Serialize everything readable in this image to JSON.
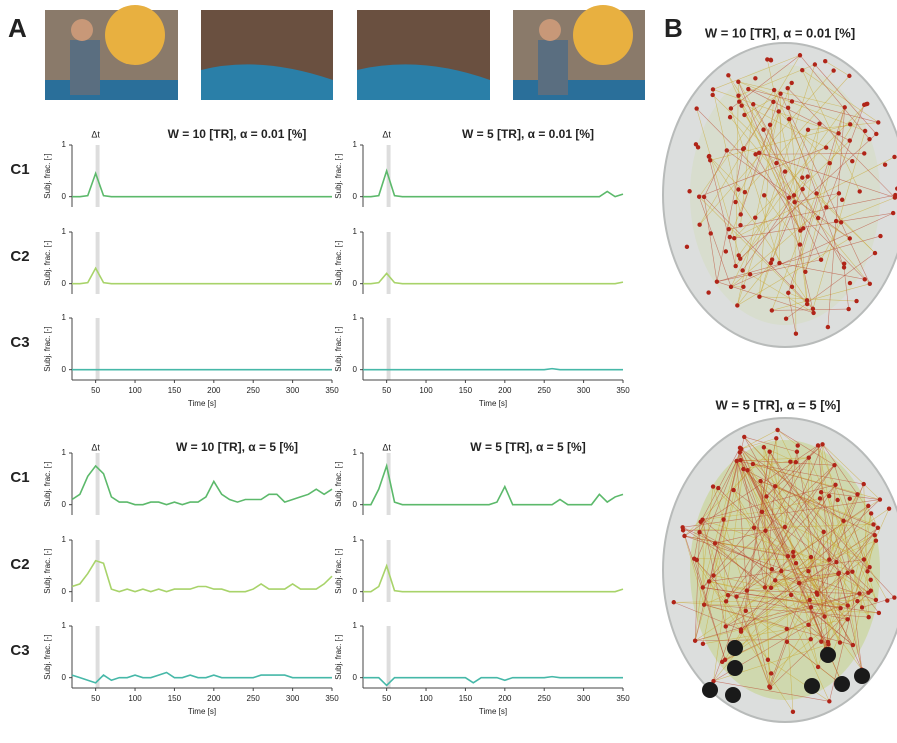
{
  "panel_labels": [
    "A",
    "B"
  ],
  "brain_titles": [
    "W = 10 [TR], α = 0.01 [%]",
    "W = 5 [TR], α = 5 [%]"
  ],
  "chart_data": [
    {
      "type": "line",
      "title": "W = 10 [TR], α = 0.01 [%]",
      "annotation": "Δt",
      "band": [
        50,
        55
      ],
      "xlabel": "Time [s]",
      "ylabel": "Subj. frac. [-]",
      "xlim": [
        20,
        350
      ],
      "xticks": [
        50,
        100,
        150,
        200,
        250,
        300,
        350
      ],
      "ylim": [
        -0.2,
        1
      ],
      "yticks": [
        0,
        1
      ],
      "x": [
        20,
        30,
        40,
        50,
        60,
        70,
        80,
        90,
        100,
        110,
        120,
        130,
        140,
        150,
        160,
        170,
        180,
        190,
        200,
        210,
        220,
        230,
        240,
        250,
        260,
        270,
        280,
        290,
        300,
        310,
        320,
        330,
        340,
        350
      ],
      "series": [
        {
          "name": "C1",
          "color": "#5cb96b",
          "values": [
            0,
            0,
            0.02,
            0.45,
            0.02,
            0,
            0,
            0,
            0,
            0,
            0,
            0,
            0,
            0,
            0,
            0,
            0,
            0,
            0,
            0,
            0,
            0,
            0,
            0,
            0,
            0,
            0,
            0,
            0,
            0,
            0,
            0,
            0,
            0
          ]
        },
        {
          "name": "C2",
          "color": "#a8d36a",
          "values": [
            0,
            0,
            0.02,
            0.3,
            0.02,
            0,
            0,
            0,
            0,
            0,
            0,
            0,
            0,
            0,
            0,
            0,
            0,
            0,
            0,
            0,
            0,
            0,
            0,
            0,
            0,
            0,
            0,
            0,
            0,
            0,
            0,
            0,
            0,
            0
          ]
        },
        {
          "name": "C3",
          "color": "#46b8a8",
          "values": [
            0,
            0,
            0,
            0,
            0,
            0,
            0,
            0,
            0,
            0,
            0,
            0,
            0,
            0,
            0,
            0,
            0,
            0,
            0,
            0,
            0,
            0,
            0,
            0,
            0,
            0,
            0,
            0,
            0,
            0,
            0,
            0,
            0,
            0
          ]
        }
      ]
    },
    {
      "type": "line",
      "title": "W = 5 [TR], α = 0.01 [%]",
      "annotation": "Δt",
      "band": [
        50,
        55
      ],
      "xlabel": "Time [s]",
      "ylabel": "Subj. frac. [-]",
      "xlim": [
        20,
        350
      ],
      "xticks": [
        50,
        100,
        150,
        200,
        250,
        300,
        350
      ],
      "ylim": [
        -0.2,
        1
      ],
      "yticks": [
        0,
        1
      ],
      "x": [
        20,
        30,
        40,
        50,
        60,
        70,
        80,
        90,
        100,
        110,
        120,
        130,
        140,
        150,
        160,
        170,
        180,
        190,
        200,
        210,
        220,
        230,
        240,
        250,
        260,
        270,
        280,
        290,
        300,
        310,
        320,
        330,
        340,
        350
      ],
      "series": [
        {
          "name": "C1",
          "color": "#5cb96b",
          "values": [
            0,
            0,
            0.02,
            0.5,
            0.02,
            0,
            0,
            0,
            0,
            0,
            0,
            0,
            0,
            0,
            0,
            0,
            0,
            0,
            0,
            0,
            0,
            0,
            0,
            0,
            0,
            0,
            0,
            0,
            0,
            0,
            0,
            0.1,
            0,
            0.05
          ]
        },
        {
          "name": "C2",
          "color": "#a8d36a",
          "values": [
            0,
            0,
            0.02,
            0.2,
            0.02,
            0,
            0,
            0,
            0,
            0,
            0,
            0,
            0,
            0,
            0,
            0,
            0,
            0,
            0,
            0,
            0,
            0,
            0,
            0,
            0,
            0,
            0,
            0,
            0,
            0,
            0,
            0,
            0,
            0.03
          ]
        },
        {
          "name": "C3",
          "color": "#46b8a8",
          "values": [
            0,
            0,
            0,
            0,
            0,
            0,
            0,
            0,
            0,
            0,
            0,
            0,
            0,
            0,
            0,
            0,
            0,
            0,
            0,
            0,
            0,
            0,
            0,
            0,
            0.02,
            0,
            0,
            0,
            0,
            0,
            0,
            0,
            0,
            0
          ]
        }
      ]
    },
    {
      "type": "line",
      "title": "W = 10 [TR], α = 5 [%]",
      "annotation": "Δt",
      "band": [
        50,
        55
      ],
      "xlabel": "Time [s]",
      "ylabel": "Subj. frac. [-]",
      "xlim": [
        20,
        350
      ],
      "xticks": [
        50,
        100,
        150,
        200,
        250,
        300,
        350
      ],
      "ylim": [
        -0.2,
        1
      ],
      "yticks": [
        0,
        1
      ],
      "x": [
        20,
        30,
        40,
        50,
        60,
        70,
        80,
        90,
        100,
        110,
        120,
        130,
        140,
        150,
        160,
        170,
        180,
        190,
        200,
        210,
        220,
        230,
        240,
        250,
        260,
        270,
        280,
        290,
        300,
        310,
        320,
        330,
        340,
        350
      ],
      "series": [
        {
          "name": "C1",
          "color": "#5cb96b",
          "values": [
            0.1,
            0.2,
            0.55,
            0.75,
            0.6,
            0.15,
            0.05,
            0.05,
            0,
            0,
            0.05,
            0.05,
            0,
            0.05,
            0,
            0.05,
            0.05,
            0.15,
            0.45,
            0.2,
            0.1,
            0.05,
            0.1,
            0.1,
            0.1,
            0.2,
            0.2,
            0.05,
            0.1,
            0.15,
            0.2,
            0.3,
            0.2,
            0.3
          ]
        },
        {
          "name": "C2",
          "color": "#a8d36a",
          "values": [
            0.1,
            0.15,
            0.35,
            0.6,
            0.55,
            0.05,
            0,
            0.05,
            0,
            0.05,
            0,
            0.05,
            0,
            0.05,
            0.05,
            0.05,
            0.1,
            0.1,
            0.05,
            0.05,
            0,
            0,
            0,
            0.05,
            0.15,
            0.05,
            0.05,
            0.05,
            0.15,
            0.05,
            0.05,
            0.05,
            0.15,
            0.3
          ]
        },
        {
          "name": "C3",
          "color": "#46b8a8",
          "values": [
            0.05,
            0,
            -0.05,
            -0.1,
            0.05,
            -0.05,
            0,
            0,
            0.05,
            0,
            0,
            0.05,
            0.1,
            0,
            0,
            0.05,
            0,
            0,
            0.05,
            0,
            0,
            0,
            0,
            0,
            0.05,
            0.05,
            0.05,
            0.05,
            0,
            0,
            0,
            0,
            0,
            0
          ]
        }
      ]
    },
    {
      "type": "line",
      "title": "W = 5 [TR], α = 5 [%]",
      "annotation": "Δt",
      "band": [
        50,
        55
      ],
      "xlabel": "Time [s]",
      "ylabel": "Subj. frac. [-]",
      "xlim": [
        20,
        350
      ],
      "xticks": [
        50,
        100,
        150,
        200,
        250,
        300,
        350
      ],
      "ylim": [
        -0.2,
        1
      ],
      "yticks": [
        0,
        1
      ],
      "x": [
        20,
        30,
        40,
        50,
        60,
        70,
        80,
        90,
        100,
        110,
        120,
        130,
        140,
        150,
        160,
        170,
        180,
        190,
        200,
        210,
        220,
        230,
        240,
        250,
        260,
        270,
        280,
        290,
        300,
        310,
        320,
        330,
        340,
        350
      ],
      "series": [
        {
          "name": "C1",
          "color": "#5cb96b",
          "values": [
            0,
            0,
            0.3,
            0.75,
            0.05,
            0,
            0,
            0,
            0,
            0,
            0,
            0,
            0,
            0,
            0,
            0,
            0,
            0.05,
            0.35,
            0,
            0,
            0,
            0,
            0,
            0,
            0.1,
            0,
            0,
            0,
            0,
            0.2,
            0.05,
            0.15,
            0.2
          ]
        },
        {
          "name": "C2",
          "color": "#a8d36a",
          "values": [
            0,
            0,
            0.1,
            0.5,
            0.02,
            0,
            0,
            0,
            0,
            0,
            0,
            0,
            0,
            0,
            0,
            0,
            0,
            0,
            0,
            0,
            0,
            0,
            0,
            0,
            0,
            0,
            0,
            0,
            0,
            0,
            0,
            0,
            0,
            0.05
          ]
        },
        {
          "name": "C3",
          "color": "#46b8a8",
          "values": [
            0,
            0,
            0,
            -0.15,
            0,
            0,
            0,
            0,
            0,
            0,
            0,
            0,
            0,
            0,
            -0.1,
            0,
            0,
            0,
            -0.05,
            0,
            0,
            0,
            0,
            0,
            0.02,
            0,
            0,
            0,
            0,
            0,
            0,
            0,
            0,
            0
          ]
        }
      ]
    }
  ]
}
